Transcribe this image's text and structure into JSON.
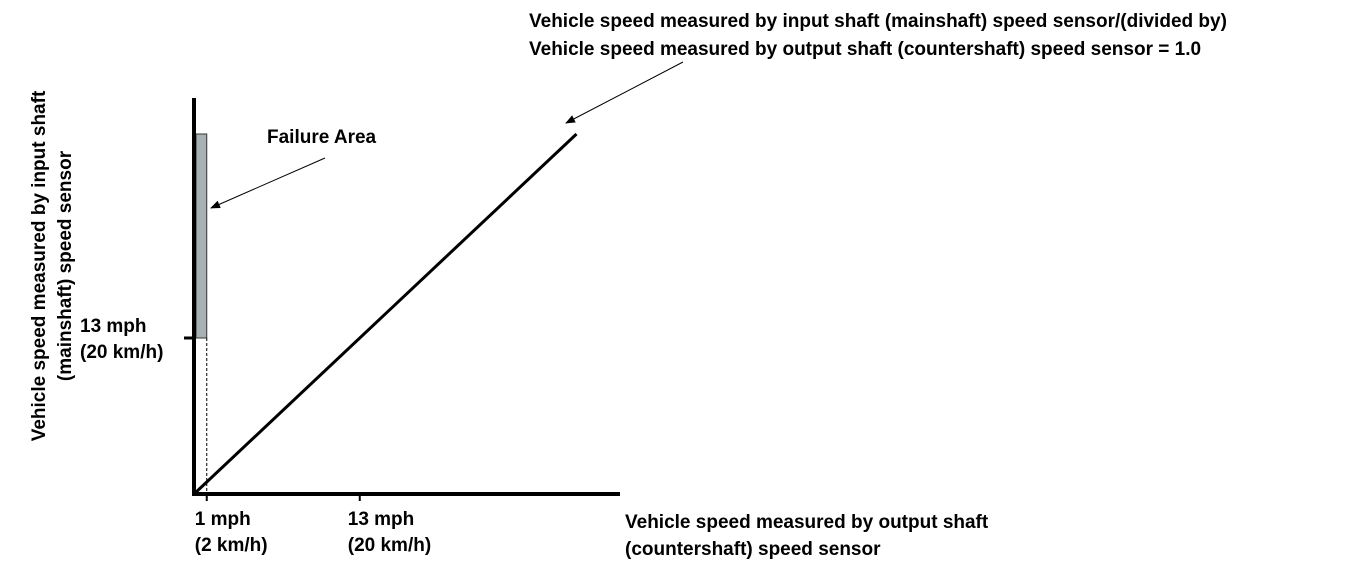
{
  "chart_data": {
    "type": "line",
    "xlabel": [
      "Vehicle speed measured by output shaft",
      "(countershaft) speed sensor"
    ],
    "ylabel": [
      "Vehicle speed measured by input shaft",
      "(mainshaft) speed sensor"
    ],
    "x_ticks": [
      {
        "value": 1,
        "label": [
          "1 mph",
          "(2 km/h)"
        ]
      },
      {
        "value": 13,
        "label": [
          "13 mph",
          "(20 km/h)"
        ]
      }
    ],
    "y_ticks": [
      {
        "value": 13,
        "label": [
          "13 mph",
          "(20 km/h)"
        ]
      }
    ],
    "series": [
      {
        "x": [
          0,
          30
        ],
        "y": [
          0,
          30
        ]
      }
    ],
    "failure_area": {
      "label": "Failure Area",
      "x_range": [
        0,
        1
      ],
      "y_range": [
        13,
        30
      ]
    },
    "annotations": [
      {
        "text": [
          "Vehicle speed measured by input shaft (mainshaft) speed sensor/(divided by)",
          "Vehicle speed measured by output shaft (countershaft) speed sensor = 1.0"
        ]
      }
    ],
    "grid": false,
    "colors": {
      "axis": "#000000",
      "line": "#000000",
      "failure_fill": "#a7b0b2"
    }
  }
}
